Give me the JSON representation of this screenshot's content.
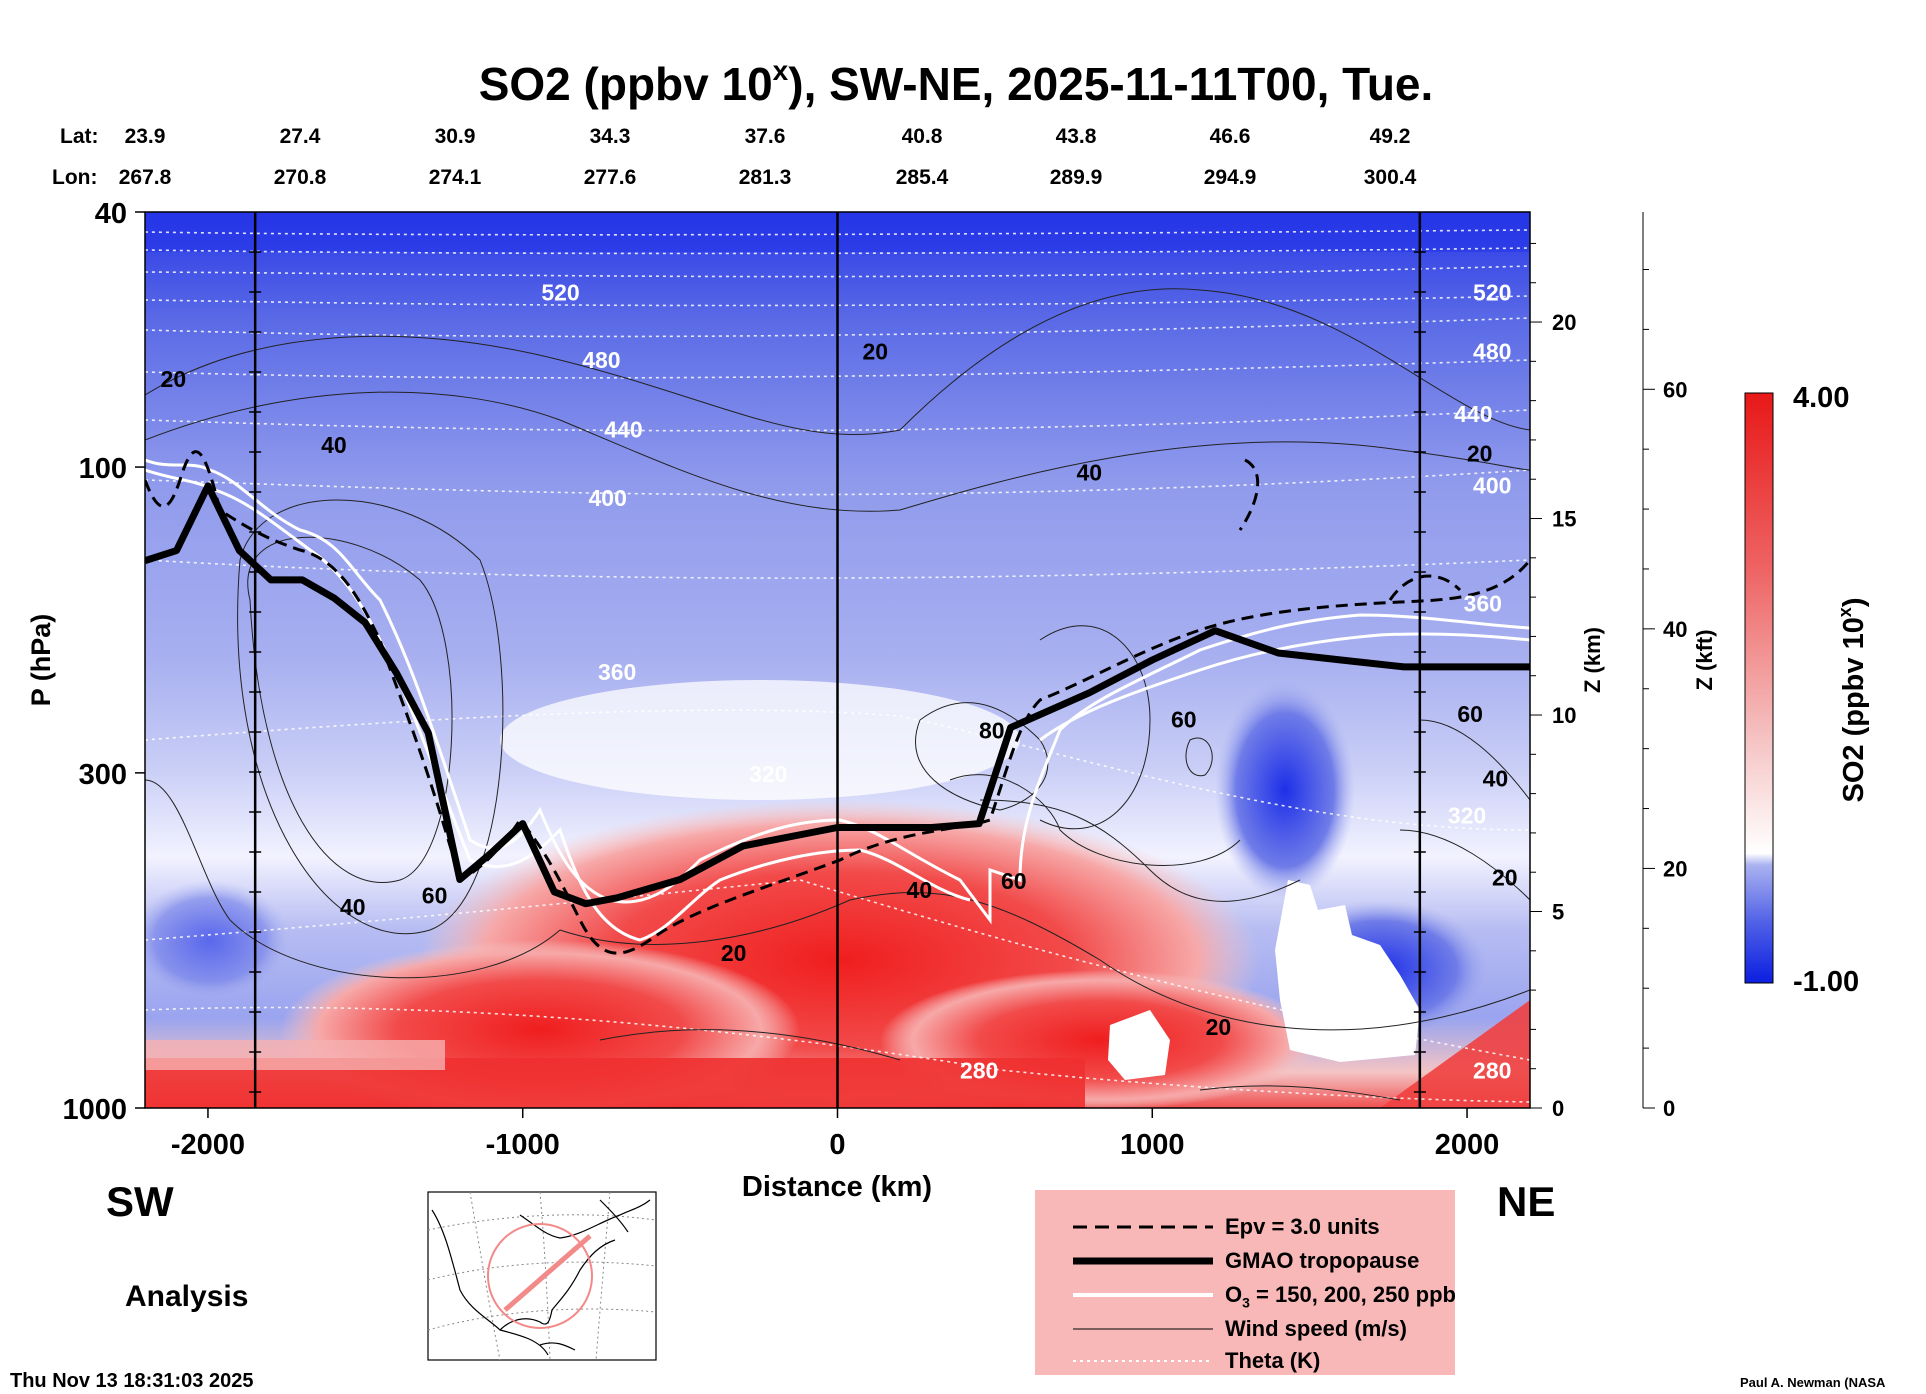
{
  "chart_data": {
    "type": "heatmap",
    "title": "SO2 (ppbv 10",
    "title_exponent": "x",
    "title_suffix": "), SW-NE, 2025-11-11T00, Tue.",
    "xlabel": "Distance (km)",
    "ylabel": "P (hPa)",
    "z_km_label": "Z (km)",
    "z_kft_label": "Z (kft)",
    "colorbar_label": "SO2 (ppbv 10",
    "colorbar_label_exponent": "x",
    "colorbar_range": [
      -1.0,
      4.0
    ],
    "colorbar_max_label": "4.00",
    "colorbar_min_label": "-1.00",
    "xlim": [
      -2200,
      2200
    ],
    "ylim_hpa": [
      1000,
      40
    ],
    "x_ticks": [
      {
        "value": -2000,
        "label": "-2000"
      },
      {
        "value": -1000,
        "label": "-1000"
      },
      {
        "value": 0,
        "label": "0"
      },
      {
        "value": 1000,
        "label": "1000"
      },
      {
        "value": 2000,
        "label": "2000"
      }
    ],
    "y_ticks": [
      {
        "value": 40,
        "label": "40"
      },
      {
        "value": 100,
        "label": "100"
      },
      {
        "value": 300,
        "label": "300"
      },
      {
        "value": 1000,
        "label": "1000"
      }
    ],
    "z_km_ticks": [
      {
        "value": 0,
        "label": "0"
      },
      {
        "value": 5,
        "label": "5"
      },
      {
        "value": 10,
        "label": "10"
      },
      {
        "value": 15,
        "label": "15"
      },
      {
        "value": 20,
        "label": "20"
      }
    ],
    "z_kft_ticks": [
      {
        "value": 0,
        "label": "0"
      },
      {
        "value": 20,
        "label": "20"
      },
      {
        "value": 40,
        "label": "40"
      },
      {
        "value": 60,
        "label": "60"
      }
    ],
    "lat_label": "Lat:",
    "lon_label": "Lon:",
    "lat_values": [
      "23.9",
      "27.4",
      "30.9",
      "34.3",
      "37.6",
      "40.8",
      "43.8",
      "46.6",
      "49.2"
    ],
    "lon_values": [
      "267.8",
      "270.8",
      "274.1",
      "277.6",
      "281.3",
      "285.4",
      "289.9",
      "294.9",
      "300.4"
    ],
    "vertical_marker_lines_km": [
      -1850,
      0,
      1850
    ],
    "theta_labels": [
      {
        "x": -880,
        "p": 55,
        "label": "520"
      },
      {
        "x": -750,
        "p": 70,
        "label": "480"
      },
      {
        "x": -680,
        "p": 90,
        "label": "440"
      },
      {
        "x": -730,
        "p": 115,
        "label": "400"
      },
      {
        "x": -700,
        "p": 215,
        "label": "360"
      },
      {
        "x": -220,
        "p": 310,
        "label": "320"
      },
      {
        "x": 2080,
        "p": 55,
        "label": "520"
      },
      {
        "x": 2080,
        "p": 68,
        "label": "480"
      },
      {
        "x": 2020,
        "p": 85,
        "label": "440"
      },
      {
        "x": 2080,
        "p": 110,
        "label": "400"
      },
      {
        "x": 2050,
        "p": 168,
        "label": "360"
      },
      {
        "x": 2000,
        "p": 360,
        "label": "320"
      },
      {
        "x": 450,
        "p": 900,
        "label": "280"
      },
      {
        "x": 2080,
        "p": 900,
        "label": "280"
      }
    ],
    "wind_labels": [
      {
        "x": -2110,
        "p": 75,
        "label": "20"
      },
      {
        "x": -1600,
        "p": 95,
        "label": "40"
      },
      {
        "x": 120,
        "p": 68,
        "label": "20"
      },
      {
        "x": 800,
        "p": 105,
        "label": "40"
      },
      {
        "x": 2040,
        "p": 98,
        "label": "20"
      },
      {
        "x": -1540,
        "p": 500,
        "label": "40"
      },
      {
        "x": -1280,
        "p": 480,
        "label": "60"
      },
      {
        "x": -330,
        "p": 590,
        "label": "20"
      },
      {
        "x": 260,
        "p": 470,
        "label": "40"
      },
      {
        "x": 560,
        "p": 455,
        "label": "60"
      },
      {
        "x": 490,
        "p": 265,
        "label": "80"
      },
      {
        "x": 1100,
        "p": 255,
        "label": "60"
      },
      {
        "x": 2010,
        "p": 250,
        "label": "60"
      },
      {
        "x": 2090,
        "p": 315,
        "label": "40"
      },
      {
        "x": 2120,
        "p": 450,
        "label": "20"
      },
      {
        "x": 1210,
        "p": 770,
        "label": "20"
      }
    ],
    "tropopause_hpa": [
      {
        "x": -2200,
        "p": 140
      },
      {
        "x": -2100,
        "p": 135
      },
      {
        "x": -2000,
        "p": 107
      },
      {
        "x": -1900,
        "p": 135
      },
      {
        "x": -1800,
        "p": 150
      },
      {
        "x": -1700,
        "p": 150
      },
      {
        "x": -1600,
        "p": 160
      },
      {
        "x": -1500,
        "p": 175
      },
      {
        "x": -1400,
        "p": 210
      },
      {
        "x": -1300,
        "p": 260
      },
      {
        "x": -1200,
        "p": 440
      },
      {
        "x": -1100,
        "p": 400
      },
      {
        "x": -1000,
        "p": 360
      },
      {
        "x": -900,
        "p": 460
      },
      {
        "x": -800,
        "p": 480
      },
      {
        "x": -700,
        "p": 470
      },
      {
        "x": -500,
        "p": 440
      },
      {
        "x": -300,
        "p": 390
      },
      {
        "x": 0,
        "p": 365
      },
      {
        "x": 300,
        "p": 365
      },
      {
        "x": 450,
        "p": 360
      },
      {
        "x": 550,
        "p": 255
      },
      {
        "x": 800,
        "p": 225
      },
      {
        "x": 1000,
        "p": 200
      },
      {
        "x": 1200,
        "p": 180
      },
      {
        "x": 1400,
        "p": 195
      },
      {
        "x": 1600,
        "p": 200
      },
      {
        "x": 1800,
        "p": 205
      },
      {
        "x": 2200,
        "p": 205
      }
    ],
    "legend": [
      {
        "style": "dashed",
        "label": "Epv = 3.0 units"
      },
      {
        "style": "thick",
        "label": "GMAO tropopause"
      },
      {
        "style": "white",
        "label": "O",
        "label_sub": "3",
        "label_rest": " = 150, 200, 250 ppb"
      },
      {
        "style": "thin",
        "label": "Wind speed (m/s)"
      },
      {
        "style": "dotted",
        "label": "Theta (K)"
      }
    ],
    "region_left": "SW",
    "region_right": "NE",
    "analysis_label": "Analysis",
    "timestamp": "Thu Nov 13 18:31:03 2025",
    "credit": "Paul A. Newman (NASA"
  },
  "colors": {
    "neg": "#1e28e6",
    "zero": "#ffffff",
    "pos": "#f01e1e",
    "legend_bg": "#f9b8b8"
  }
}
